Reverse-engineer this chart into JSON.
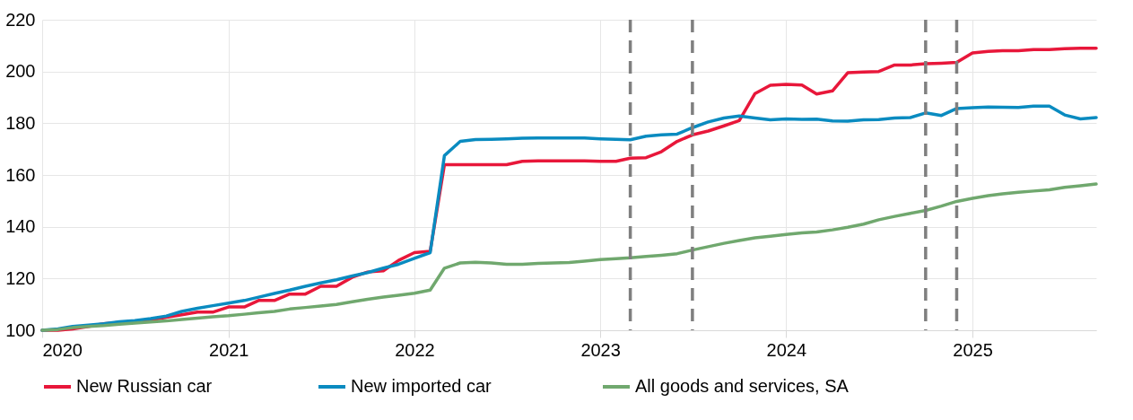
{
  "chart_data": {
    "type": "line",
    "x": [
      "2020-01",
      "2020-02",
      "2020-03",
      "2020-04",
      "2020-05",
      "2020-06",
      "2020-07",
      "2020-08",
      "2020-09",
      "2020-10",
      "2020-11",
      "2020-12",
      "2021-01",
      "2021-02",
      "2021-03",
      "2021-04",
      "2021-05",
      "2021-06",
      "2021-07",
      "2021-08",
      "2021-09",
      "2021-10",
      "2021-11",
      "2021-12",
      "2022-01",
      "2022-02",
      "2022-03",
      "2022-04",
      "2022-05",
      "2022-06",
      "2022-07",
      "2022-08",
      "2022-09",
      "2022-10",
      "2022-11",
      "2022-12",
      "2023-01",
      "2023-02",
      "2023-03",
      "2023-04",
      "2023-05",
      "2023-06",
      "2023-07",
      "2023-08",
      "2023-09",
      "2023-10",
      "2023-11",
      "2023-12",
      "2024-01",
      "2024-02",
      "2024-03",
      "2024-04",
      "2024-05",
      "2024-06",
      "2024-07",
      "2024-08",
      "2024-09",
      "2024-10",
      "2024-11",
      "2024-12",
      "2025-01",
      "2025-02",
      "2025-03",
      "2025-04",
      "2025-05",
      "2025-06",
      "2025-07",
      "2025-08",
      "2025-09"
    ],
    "series": [
      {
        "name": "New Russian car",
        "color": "#e8173a",
        "values": [
          100,
          100,
          100.5,
          101.5,
          102.5,
          103,
          103.5,
          104,
          105,
          106,
          107,
          107,
          109,
          109,
          111.5,
          111.5,
          114,
          114,
          117,
          117,
          120.5,
          122.5,
          123,
          127,
          130,
          130.5,
          164,
          164,
          164,
          164,
          164,
          165.3,
          165.5,
          165.5,
          165.5,
          165.5,
          165.3,
          165.3,
          166.5,
          166.7,
          169,
          173,
          175.5,
          177,
          179,
          181,
          191.5,
          194.7,
          195,
          194.8,
          191.3,
          192.5,
          199.5,
          199.8,
          200,
          202.5,
          202.5,
          203,
          203.2,
          203.5,
          207.2,
          207.8,
          208,
          208,
          208.5,
          208.5,
          208.8,
          209,
          209
        ]
      },
      {
        "name": "New imported  car",
        "color": "#0a8bc0",
        "values": [
          100,
          100.5,
          101.5,
          102,
          102.5,
          103.3,
          103.7,
          104.5,
          105.5,
          107.3,
          108.5,
          109.5,
          110.5,
          111.5,
          112.8,
          114.2,
          115.5,
          117,
          118.3,
          119.5,
          121,
          122.3,
          124,
          125.5,
          127.8,
          130,
          167.5,
          173,
          173.7,
          173.8,
          174,
          174.2,
          174.3,
          174.3,
          174.3,
          174.3,
          174,
          173.8,
          173.6,
          175,
          175.5,
          175.8,
          178.3,
          180.5,
          182,
          182.8,
          182,
          181.3,
          181.7,
          181.5,
          181.6,
          180.9,
          180.8,
          181.3,
          181.4,
          182,
          182.2,
          184,
          183,
          185.7,
          186,
          186.3,
          186.2,
          186.1,
          186.6,
          186.6,
          183.2,
          181.7,
          182.2
        ]
      },
      {
        "name": "All goods and services, SA",
        "color": "#70a86e",
        "values": [
          100,
          100.3,
          101,
          101.5,
          101.8,
          102.3,
          102.8,
          103.2,
          103.6,
          104.2,
          104.7,
          105.2,
          105.6,
          106.2,
          106.8,
          107.3,
          108.2,
          108.8,
          109.4,
          110,
          111,
          112,
          112.8,
          113.5,
          114.3,
          115.5,
          124,
          126,
          126.3,
          126,
          125.5,
          125.5,
          125.8,
          126,
          126.2,
          126.7,
          127.3,
          127.7,
          128,
          128.5,
          129,
          129.6,
          131,
          132.3,
          133.6,
          134.7,
          135.7,
          136.3,
          137,
          137.6,
          138,
          138.8,
          139.8,
          141,
          142.7,
          144,
          145.2,
          146.3,
          148,
          149.8,
          151,
          152,
          152.7,
          153.3,
          153.8,
          154.3,
          155.2,
          155.8,
          156.5
        ]
      }
    ],
    "xlim": [
      "2020-01",
      "2025-09"
    ],
    "xticks": [
      {
        "value": "2020-01",
        "label": "2020"
      },
      {
        "value": "2021-01",
        "label": "2021"
      },
      {
        "value": "2022-01",
        "label": "2022"
      },
      {
        "value": "2023-01",
        "label": "2023"
      },
      {
        "value": "2024-01",
        "label": "2024"
      },
      {
        "value": "2025-01",
        "label": "2025"
      }
    ],
    "ylim": [
      100,
      220
    ],
    "yticks": [
      100,
      120,
      140,
      160,
      180,
      200,
      220
    ],
    "ref_lines": [
      {
        "axis": "x",
        "value": "2023-03",
        "color": "#7f7f7f",
        "line_style": "dashed"
      },
      {
        "axis": "x",
        "value": "2023-07",
        "color": "#7f7f7f",
        "line_style": "dashed"
      },
      {
        "axis": "x",
        "value": "2024-10",
        "color": "#7f7f7f",
        "line_style": "dashed"
      },
      {
        "axis": "x",
        "value": "2024-12",
        "color": "#7f7f7f",
        "line_style": "dashed"
      }
    ],
    "grid": true,
    "legend": "bottom",
    "marker": "none",
    "line_style": "solid"
  }
}
